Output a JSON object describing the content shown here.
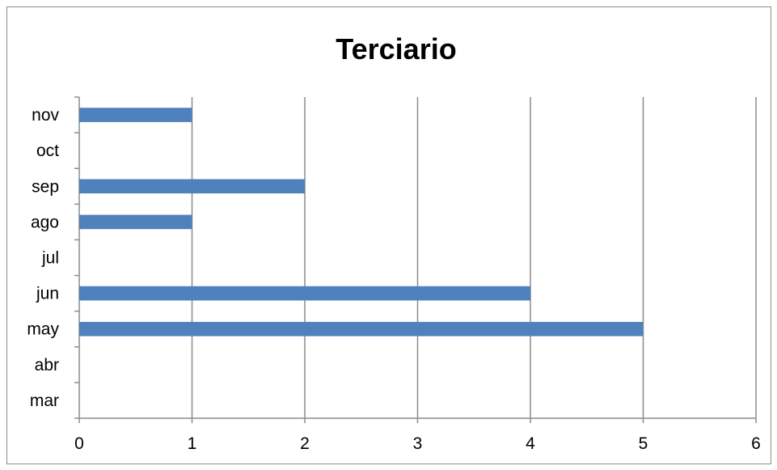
{
  "chart_data": {
    "type": "bar",
    "orientation": "horizontal",
    "title": "Terciario",
    "xlabel": "",
    "ylabel": "",
    "categories": [
      "mar",
      "abr",
      "may",
      "jun",
      "jul",
      "ago",
      "sep",
      "oct",
      "nov"
    ],
    "values": [
      0,
      0,
      5,
      4,
      0,
      1,
      2,
      0,
      1
    ],
    "xlim": [
      0,
      6
    ],
    "xticks": [
      "0",
      "1",
      "2",
      "3",
      "4",
      "5",
      "6"
    ],
    "grid": "vertical",
    "legend": "none",
    "bar_color": "#4f81bd",
    "grid_color": "#8c8c8c"
  }
}
